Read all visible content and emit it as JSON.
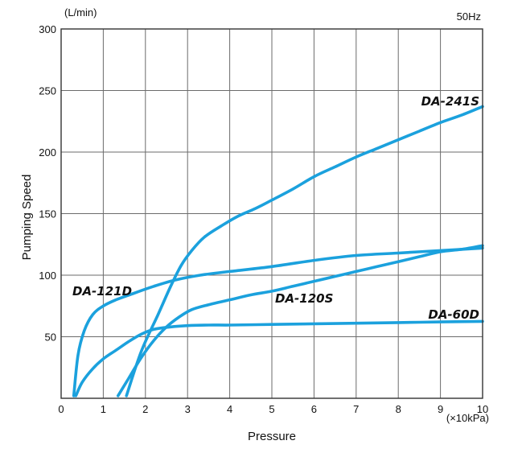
{
  "chart_data": {
    "type": "line",
    "title": "",
    "ylabel": "Pumping Speed",
    "xlabel": "Pressure",
    "y_unit": "(L/min)",
    "x_unit": "(×10kPa)",
    "frequency_label": "50Hz",
    "xlim": [
      0,
      10
    ],
    "ylim": [
      0,
      300
    ],
    "x_ticks": [
      "0",
      "1",
      "2",
      "3",
      "4",
      "5",
      "6",
      "7",
      "8",
      "9",
      "10"
    ],
    "y_ticks": [
      "50",
      "100",
      "150",
      "200",
      "250",
      "300"
    ],
    "grid": true,
    "line_color": "#1ba1dd",
    "series": [
      {
        "name": "DA-241S",
        "x": [
          1.55,
          1.9,
          2.3,
          2.6,
          2.85,
          3.1,
          3.4,
          3.8,
          4.2,
          4.6,
          5.0,
          5.5,
          6.0,
          6.5,
          7.0,
          7.5,
          8.0,
          8.5,
          9.0,
          9.5,
          10.0
        ],
        "y": [
          2,
          38,
          68,
          91,
          108,
          120,
          131,
          140,
          148,
          154,
          161,
          170,
          180,
          188,
          196,
          203,
          210,
          217,
          224,
          230,
          237
        ]
      },
      {
        "name": "DA-121D",
        "x": [
          0.3,
          0.4,
          0.55,
          0.75,
          1.0,
          1.3,
          1.7,
          2.2,
          2.7,
          3.3,
          4.0,
          5.0,
          6.0,
          7.0,
          8.0,
          9.0,
          10.0
        ],
        "y": [
          2,
          35,
          55,
          68,
          75,
          80,
          85,
          91,
          96,
          100,
          103,
          107,
          112,
          116,
          118,
          120,
          122
        ]
      },
      {
        "name": "DA-120S",
        "x": [
          1.35,
          1.6,
          1.9,
          2.2,
          2.5,
          2.8,
          3.1,
          3.5,
          4.0,
          4.5,
          5.0,
          5.5,
          6.0,
          6.5,
          7.0,
          7.5,
          8.0,
          8.5,
          9.0,
          9.5,
          10.0
        ],
        "y": [
          2,
          16,
          33,
          47,
          58,
          66,
          72,
          76,
          80,
          84,
          87,
          91,
          95,
          99,
          103,
          107,
          111,
          115,
          119,
          121,
          124
        ]
      },
      {
        "name": "DA-60D",
        "x": [
          0.35,
          0.5,
          0.75,
          1.0,
          1.3,
          1.6,
          1.9,
          2.2,
          2.6,
          3.0,
          3.5,
          4.0,
          5.0,
          6.0,
          7.0,
          8.0,
          9.0,
          10.0
        ],
        "y": [
          2,
          13,
          24,
          32,
          39,
          46,
          52,
          56,
          58,
          59,
          59.5,
          59.5,
          60,
          60.5,
          61,
          61.5,
          62,
          62.5
        ]
      }
    ]
  }
}
